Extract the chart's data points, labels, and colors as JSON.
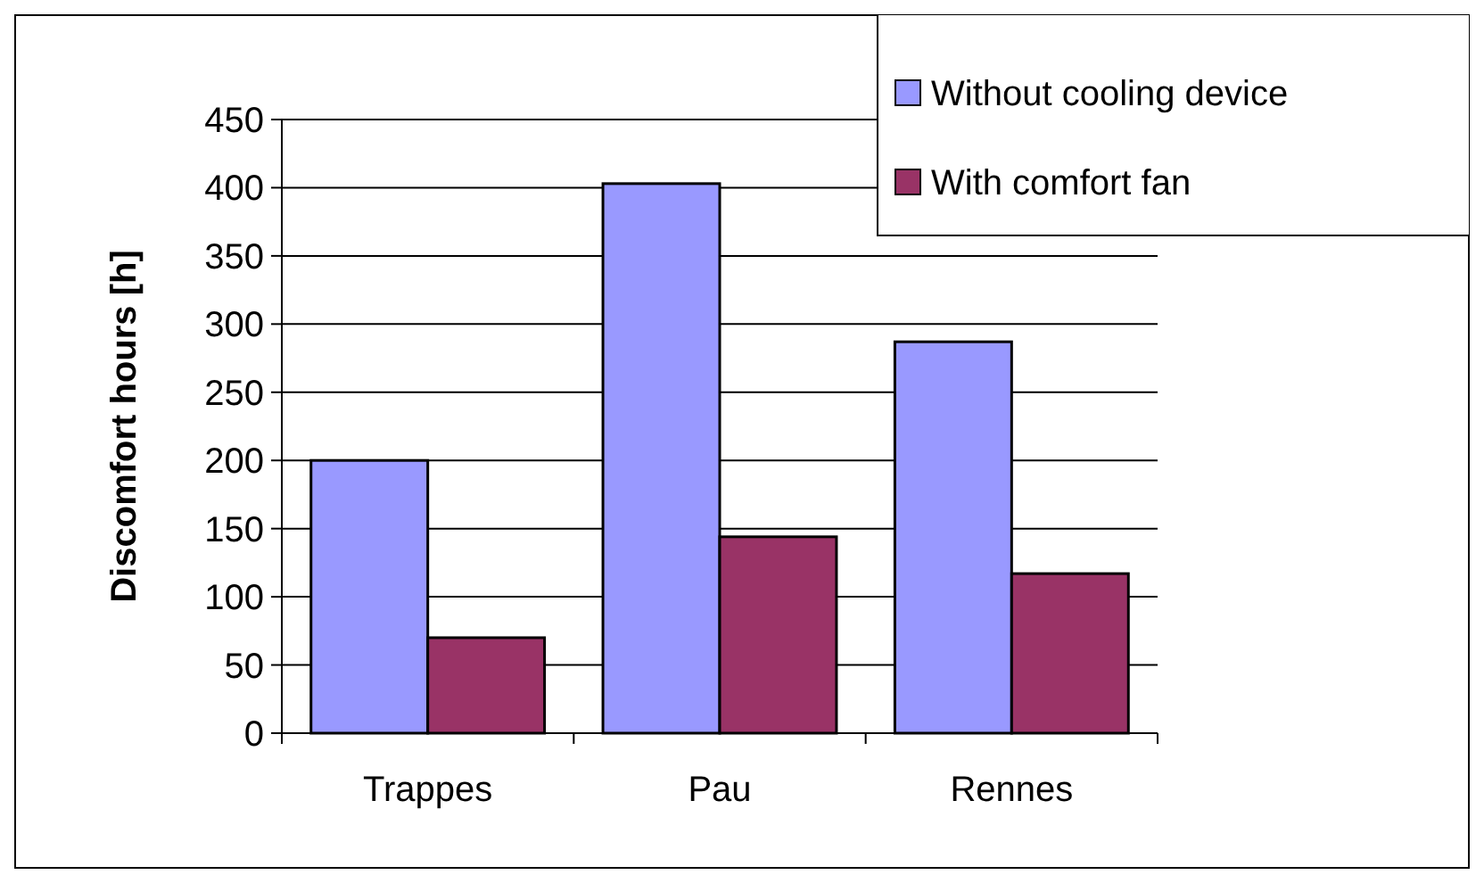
{
  "chart_data": {
    "type": "bar",
    "ylabel": "Discomfort hours [h]",
    "categories": [
      "Trappes",
      "Pau",
      "Rennes"
    ],
    "series": [
      {
        "name": "Without cooling device",
        "color": "#9999ff",
        "values": [
          200,
          403,
          287
        ]
      },
      {
        "name": "With comfort fan",
        "color": "#993366",
        "values": [
          70,
          144,
          117
        ]
      }
    ],
    "ylim": [
      0,
      450
    ],
    "yticks": [
      0,
      50,
      100,
      150,
      200,
      250,
      300,
      350,
      400,
      450
    ],
    "grid": "y",
    "legend": "top right"
  }
}
